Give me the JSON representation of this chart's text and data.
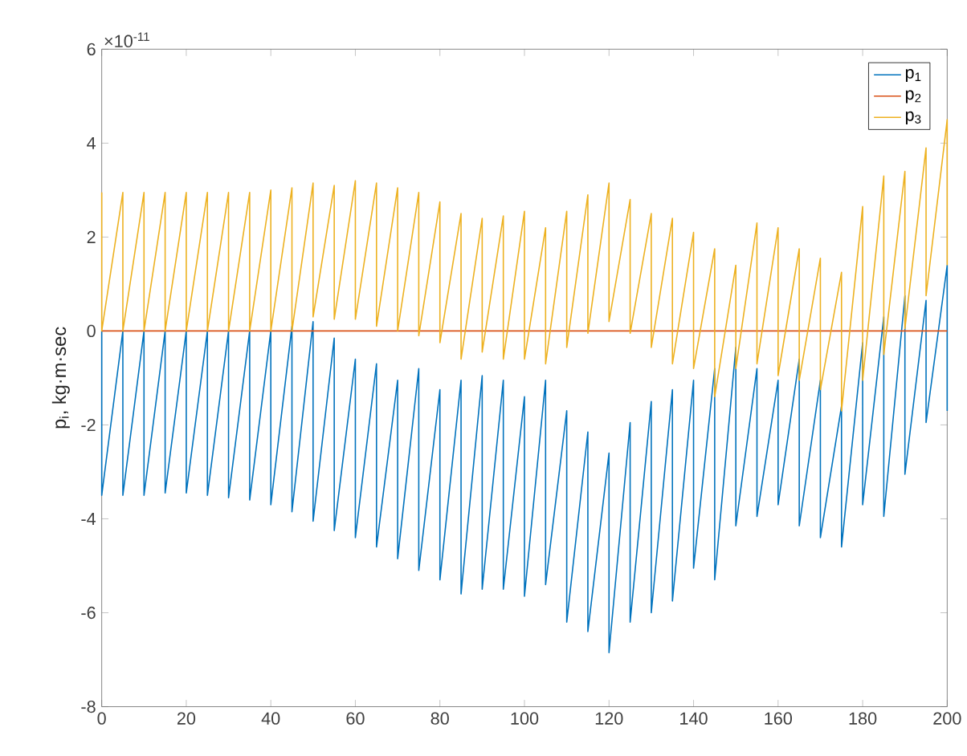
{
  "chart_data": {
    "type": "line",
    "ylabel": "p$_{i}$, kg·m·sec",
    "annotations": [
      "×10$^{-11}$"
    ],
    "xlim": [
      0,
      200
    ],
    "xticks": [
      0,
      20,
      40,
      60,
      80,
      100,
      120,
      140,
      160,
      180,
      200
    ],
    "ylim": [
      -8,
      6
    ],
    "yticks": [
      -8,
      -6,
      -4,
      -2,
      0,
      2,
      4,
      6
    ],
    "legend": "top right",
    "grid": false,
    "marker": "none",
    "line_style": "solid",
    "series": [
      {
        "name": "p$_{1}$",
        "color": "#0072bd",
        "x": [
          0,
          0,
          5,
          5,
          10,
          10,
          15,
          15,
          20,
          20,
          25,
          25,
          30,
          30,
          35,
          35,
          40,
          40,
          45,
          45,
          50,
          50,
          55,
          55,
          60,
          60,
          65,
          65,
          70,
          70,
          75,
          75,
          80,
          80,
          85,
          85,
          90,
          90,
          95,
          95,
          100,
          100,
          105,
          105,
          110,
          110,
          115,
          115,
          120,
          120,
          125,
          125,
          130,
          130,
          135,
          135,
          140,
          140,
          145,
          145,
          150,
          150,
          155,
          155,
          160,
          160,
          165,
          165,
          170,
          170,
          175,
          175,
          180,
          180,
          185,
          185,
          190,
          190,
          195,
          195,
          200,
          200
        ],
        "values": [
          0,
          -3.5,
          0,
          -3.5,
          0,
          -3.5,
          0,
          -3.45,
          0,
          -3.45,
          0,
          -3.5,
          0,
          -3.55,
          0,
          -3.6,
          0,
          -3.7,
          0.1,
          -3.85,
          0.2,
          -4.05,
          -0.15,
          -4.25,
          -0.6,
          -4.4,
          -0.7,
          -4.6,
          -1.05,
          -4.85,
          -0.8,
          -5.1,
          -1.25,
          -5.3,
          -1.05,
          -5.6,
          -0.95,
          -5.5,
          -1.05,
          -5.5,
          -1.4,
          -5.65,
          -1.05,
          -5.4,
          -1.7,
          -6.2,
          -2.15,
          -6.4,
          -2.6,
          -6.85,
          -1.95,
          -6.2,
          -1.5,
          -6.0,
          -1.25,
          -5.75,
          -1.05,
          -5.05,
          -0.8,
          -5.3,
          -0.35,
          -4.15,
          -0.8,
          -3.95,
          -1.05,
          -3.7,
          -0.6,
          -4.15,
          -1.05,
          -4.4,
          -1.6,
          -4.6,
          -0.25,
          -3.7,
          0.3,
          -3.95,
          0.75,
          -3.05,
          0.65,
          -1.95,
          1.4,
          -1.7
        ]
      },
      {
        "name": "p$_{2}$",
        "color": "#d95319",
        "x": [
          0,
          200
        ],
        "values": [
          0,
          0
        ]
      },
      {
        "name": "p$_{3}$",
        "color": "#edb120",
        "x": [
          0,
          0,
          5,
          5,
          10,
          10,
          15,
          15,
          20,
          20,
          25,
          25,
          30,
          30,
          35,
          35,
          40,
          40,
          45,
          45,
          50,
          50,
          55,
          55,
          60,
          60,
          65,
          65,
          70,
          70,
          75,
          75,
          80,
          80,
          85,
          85,
          90,
          90,
          95,
          95,
          100,
          100,
          105,
          105,
          110,
          110,
          115,
          115,
          120,
          120,
          125,
          125,
          130,
          130,
          135,
          135,
          140,
          140,
          145,
          145,
          150,
          150,
          155,
          155,
          160,
          160,
          165,
          165,
          170,
          170,
          175,
          175,
          180,
          180,
          185,
          185,
          190,
          190,
          195,
          195,
          200,
          200
        ],
        "values": [
          2.95,
          0,
          2.95,
          0,
          2.95,
          0,
          2.95,
          0,
          2.95,
          0,
          2.95,
          0,
          2.95,
          0,
          2.95,
          0,
          3.0,
          0,
          3.05,
          0,
          3.15,
          0.3,
          3.1,
          0.25,
          3.2,
          0.25,
          3.15,
          0.1,
          3.05,
          0,
          2.95,
          -0.1,
          2.75,
          -0.25,
          2.5,
          -0.6,
          2.4,
          -0.45,
          2.45,
          -0.6,
          2.55,
          -0.6,
          2.2,
          -0.7,
          2.55,
          -0.35,
          2.9,
          -0.05,
          3.15,
          0.2,
          2.8,
          -0.05,
          2.5,
          -0.35,
          2.4,
          -0.7,
          2.1,
          -0.8,
          1.75,
          -1.4,
          1.4,
          -0.8,
          2.3,
          -0.7,
          2.2,
          -0.95,
          1.75,
          -1.05,
          1.55,
          -1.25,
          1.25,
          -1.7,
          2.65,
          -1.05,
          3.3,
          -0.5,
          3.4,
          0.05,
          3.9,
          0.75,
          4.5,
          1.4
        ]
      }
    ]
  }
}
